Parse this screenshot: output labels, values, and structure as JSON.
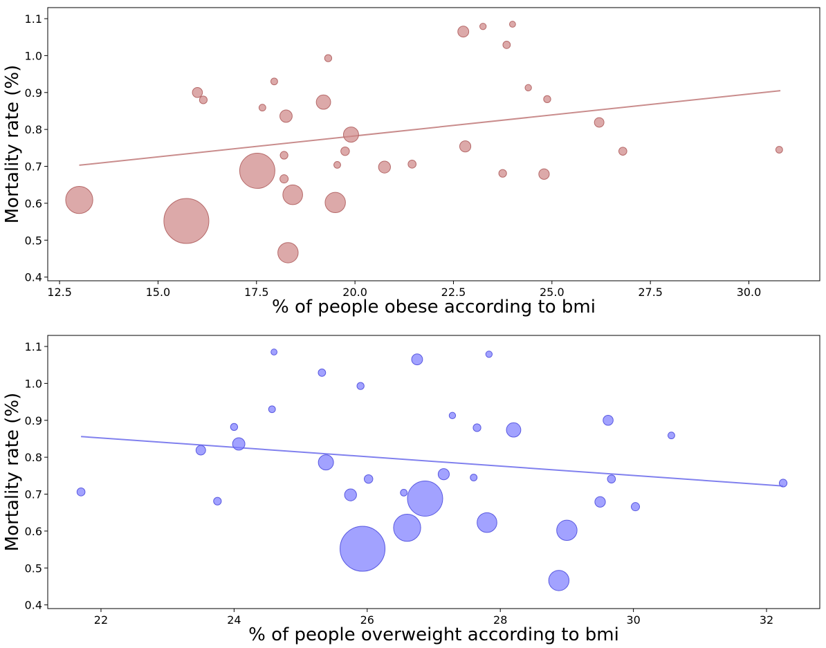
{
  "chart_data": [
    {
      "type": "scatter",
      "title": "",
      "xlabel": "% of people obese according to bmi",
      "ylabel": "Mortality rate (%)",
      "xlim": [
        12.2,
        31.8
      ],
      "ylim": [
        0.39,
        1.13
      ],
      "xticks": [
        "12.5",
        "15.0",
        "17.5",
        "20.0",
        "22.5",
        "25.0",
        "27.5",
        "30.0"
      ],
      "yticks": [
        "0.4",
        "0.5",
        "0.6",
        "0.7",
        "0.8",
        "0.9",
        "1.0",
        "1.1"
      ],
      "color": "#cd8484",
      "grid": false,
      "trendline": {
        "x": [
          13.0,
          30.8
        ],
        "y": [
          0.703,
          0.905
        ]
      },
      "points": [
        {
          "x": 13.0,
          "y": 0.609,
          "s": 1.6
        },
        {
          "x": 15.72,
          "y": 0.552,
          "s": 4.4
        },
        {
          "x": 17.52,
          "y": 0.688,
          "s": 2.7
        },
        {
          "x": 18.3,
          "y": 0.466,
          "s": 0.9
        },
        {
          "x": 18.42,
          "y": 0.623,
          "s": 0.85
        },
        {
          "x": 19.5,
          "y": 0.602,
          "s": 0.9
        },
        {
          "x": 19.9,
          "y": 0.786,
          "s": 0.5
        },
        {
          "x": 19.2,
          "y": 0.874,
          "s": 0.45
        },
        {
          "x": 18.25,
          "y": 0.836,
          "s": 0.33
        },
        {
          "x": 16.0,
          "y": 0.9,
          "s": 0.22
        },
        {
          "x": 16.15,
          "y": 0.88,
          "s": 0.13
        },
        {
          "x": 17.95,
          "y": 0.93,
          "s": 0.1
        },
        {
          "x": 17.65,
          "y": 0.859,
          "s": 0.1
        },
        {
          "x": 18.2,
          "y": 0.73,
          "s": 0.13
        },
        {
          "x": 18.2,
          "y": 0.666,
          "s": 0.15
        },
        {
          "x": 19.32,
          "y": 0.993,
          "s": 0.11
        },
        {
          "x": 19.55,
          "y": 0.704,
          "s": 0.1
        },
        {
          "x": 19.75,
          "y": 0.741,
          "s": 0.16
        },
        {
          "x": 20.75,
          "y": 0.698,
          "s": 0.31
        },
        {
          "x": 21.45,
          "y": 0.706,
          "s": 0.14
        },
        {
          "x": 22.75,
          "y": 1.065,
          "s": 0.26
        },
        {
          "x": 22.8,
          "y": 0.754,
          "s": 0.27
        },
        {
          "x": 23.25,
          "y": 1.079,
          "s": 0.09
        },
        {
          "x": 23.75,
          "y": 0.681,
          "s": 0.13
        },
        {
          "x": 23.85,
          "y": 1.029,
          "s": 0.12
        },
        {
          "x": 24.0,
          "y": 1.085,
          "s": 0.08
        },
        {
          "x": 24.4,
          "y": 0.913,
          "s": 0.09
        },
        {
          "x": 24.8,
          "y": 0.679,
          "s": 0.24
        },
        {
          "x": 24.88,
          "y": 0.882,
          "s": 0.11
        },
        {
          "x": 26.2,
          "y": 0.819,
          "s": 0.2
        },
        {
          "x": 26.8,
          "y": 0.741,
          "s": 0.14
        },
        {
          "x": 30.77,
          "y": 0.745,
          "s": 0.1
        }
      ]
    },
    {
      "type": "scatter",
      "title": "",
      "xlabel": "% of people overweight according to bmi",
      "ylabel": "Mortality rate (%)",
      "xlim": [
        21.2,
        32.8
      ],
      "ylim": [
        0.39,
        1.13
      ],
      "xticks": [
        "22",
        "24",
        "26",
        "28",
        "30",
        "32"
      ],
      "yticks": [
        "0.4",
        "0.5",
        "0.6",
        "0.7",
        "0.8",
        "0.9",
        "1.0",
        "1.1"
      ],
      "color": "#7a7aff",
      "grid": false,
      "trendline": {
        "x": [
          21.7,
          32.25
        ],
        "y": [
          0.856,
          0.722
        ]
      },
      "points": [
        {
          "x": 21.7,
          "y": 0.706,
          "s": 0.14
        },
        {
          "x": 23.5,
          "y": 0.819,
          "s": 0.2
        },
        {
          "x": 23.75,
          "y": 0.681,
          "s": 0.13
        },
        {
          "x": 24.0,
          "y": 0.882,
          "s": 0.11
        },
        {
          "x": 24.07,
          "y": 0.836,
          "s": 0.33
        },
        {
          "x": 24.57,
          "y": 0.93,
          "s": 0.1
        },
        {
          "x": 24.6,
          "y": 1.085,
          "s": 0.08
        },
        {
          "x": 25.32,
          "y": 1.029,
          "s": 0.12
        },
        {
          "x": 25.38,
          "y": 0.786,
          "s": 0.5
        },
        {
          "x": 25.9,
          "y": 0.993,
          "s": 0.11
        },
        {
          "x": 25.75,
          "y": 0.698,
          "s": 0.31
        },
        {
          "x": 26.02,
          "y": 0.741,
          "s": 0.16
        },
        {
          "x": 25.93,
          "y": 0.552,
          "s": 4.4
        },
        {
          "x": 26.55,
          "y": 0.704,
          "s": 0.1
        },
        {
          "x": 26.6,
          "y": 0.609,
          "s": 1.6
        },
        {
          "x": 26.75,
          "y": 1.065,
          "s": 0.26
        },
        {
          "x": 26.87,
          "y": 0.688,
          "s": 2.7
        },
        {
          "x": 27.15,
          "y": 0.754,
          "s": 0.27
        },
        {
          "x": 27.28,
          "y": 0.913,
          "s": 0.09
        },
        {
          "x": 27.6,
          "y": 0.745,
          "s": 0.1
        },
        {
          "x": 27.65,
          "y": 0.88,
          "s": 0.13
        },
        {
          "x": 27.8,
          "y": 0.623,
          "s": 0.85
        },
        {
          "x": 27.83,
          "y": 1.079,
          "s": 0.09
        },
        {
          "x": 28.2,
          "y": 0.874,
          "s": 0.45
        },
        {
          "x": 28.88,
          "y": 0.466,
          "s": 0.9
        },
        {
          "x": 29.0,
          "y": 0.602,
          "s": 0.9
        },
        {
          "x": 29.5,
          "y": 0.679,
          "s": 0.24
        },
        {
          "x": 29.62,
          "y": 0.9,
          "s": 0.22
        },
        {
          "x": 29.67,
          "y": 0.741,
          "s": 0.14
        },
        {
          "x": 30.03,
          "y": 0.666,
          "s": 0.15
        },
        {
          "x": 30.57,
          "y": 0.859,
          "s": 0.1
        },
        {
          "x": 32.25,
          "y": 0.73,
          "s": 0.13
        }
      ]
    }
  ]
}
